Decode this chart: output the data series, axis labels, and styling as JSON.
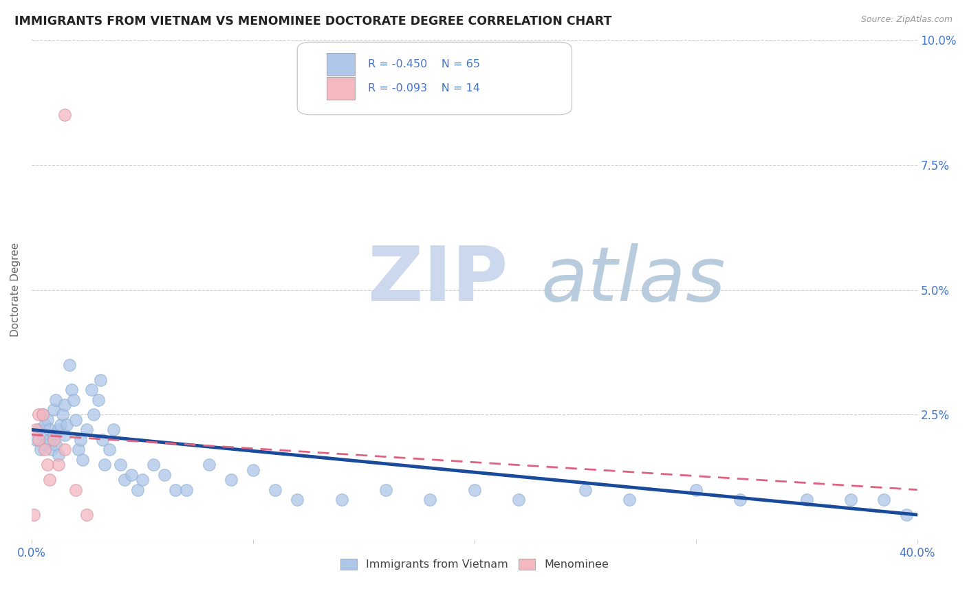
{
  "title": "IMMIGRANTS FROM VIETNAM VS MENOMINEE DOCTORATE DEGREE CORRELATION CHART",
  "source": "Source: ZipAtlas.com",
  "ylabel": "Doctorate Degree",
  "xlim": [
    0.0,
    0.4
  ],
  "ylim": [
    0.0,
    0.1
  ],
  "xticks": [
    0.0,
    0.1,
    0.2,
    0.3,
    0.4
  ],
  "yticks": [
    0.0,
    0.025,
    0.05,
    0.075,
    0.1
  ],
  "legend_label1": "Immigrants from Vietnam",
  "legend_label2": "Menominee",
  "r1": -0.45,
  "n1": 65,
  "r2": -0.093,
  "n2": 14,
  "color_blue": "#aec6e8",
  "color_pink": "#f4b8c1",
  "line_blue": "#1a4a9a",
  "line_pink": "#e06080",
  "axis_color": "#4477cc",
  "blue_x": [
    0.002,
    0.003,
    0.004,
    0.005,
    0.005,
    0.006,
    0.006,
    0.007,
    0.008,
    0.008,
    0.009,
    0.01,
    0.01,
    0.011,
    0.011,
    0.012,
    0.012,
    0.013,
    0.014,
    0.015,
    0.015,
    0.016,
    0.017,
    0.018,
    0.019,
    0.02,
    0.021,
    0.022,
    0.023,
    0.025,
    0.027,
    0.028,
    0.03,
    0.031,
    0.032,
    0.033,
    0.035,
    0.037,
    0.04,
    0.042,
    0.045,
    0.048,
    0.05,
    0.055,
    0.06,
    0.065,
    0.07,
    0.08,
    0.09,
    0.1,
    0.11,
    0.12,
    0.14,
    0.16,
    0.18,
    0.2,
    0.22,
    0.25,
    0.27,
    0.3,
    0.32,
    0.35,
    0.37,
    0.385,
    0.395
  ],
  "blue_y": [
    0.02,
    0.022,
    0.018,
    0.025,
    0.021,
    0.023,
    0.019,
    0.024,
    0.02,
    0.022,
    0.018,
    0.026,
    0.021,
    0.028,
    0.019,
    0.022,
    0.017,
    0.023,
    0.025,
    0.021,
    0.027,
    0.023,
    0.035,
    0.03,
    0.028,
    0.024,
    0.018,
    0.02,
    0.016,
    0.022,
    0.03,
    0.025,
    0.028,
    0.032,
    0.02,
    0.015,
    0.018,
    0.022,
    0.015,
    0.012,
    0.013,
    0.01,
    0.012,
    0.015,
    0.013,
    0.01,
    0.01,
    0.015,
    0.012,
    0.014,
    0.01,
    0.008,
    0.008,
    0.01,
    0.008,
    0.01,
    0.008,
    0.01,
    0.008,
    0.01,
    0.008,
    0.008,
    0.008,
    0.008,
    0.005
  ],
  "pink_x": [
    0.001,
    0.002,
    0.003,
    0.003,
    0.005,
    0.006,
    0.007,
    0.008,
    0.01,
    0.012,
    0.015,
    0.02,
    0.025,
    0.015
  ],
  "pink_y": [
    0.005,
    0.022,
    0.025,
    0.02,
    0.025,
    0.018,
    0.015,
    0.012,
    0.02,
    0.015,
    0.018,
    0.01,
    0.005,
    0.085
  ],
  "line_blue_y0": 0.022,
  "line_blue_y1": 0.005,
  "line_pink_y0": 0.021,
  "line_pink_y1": 0.01
}
